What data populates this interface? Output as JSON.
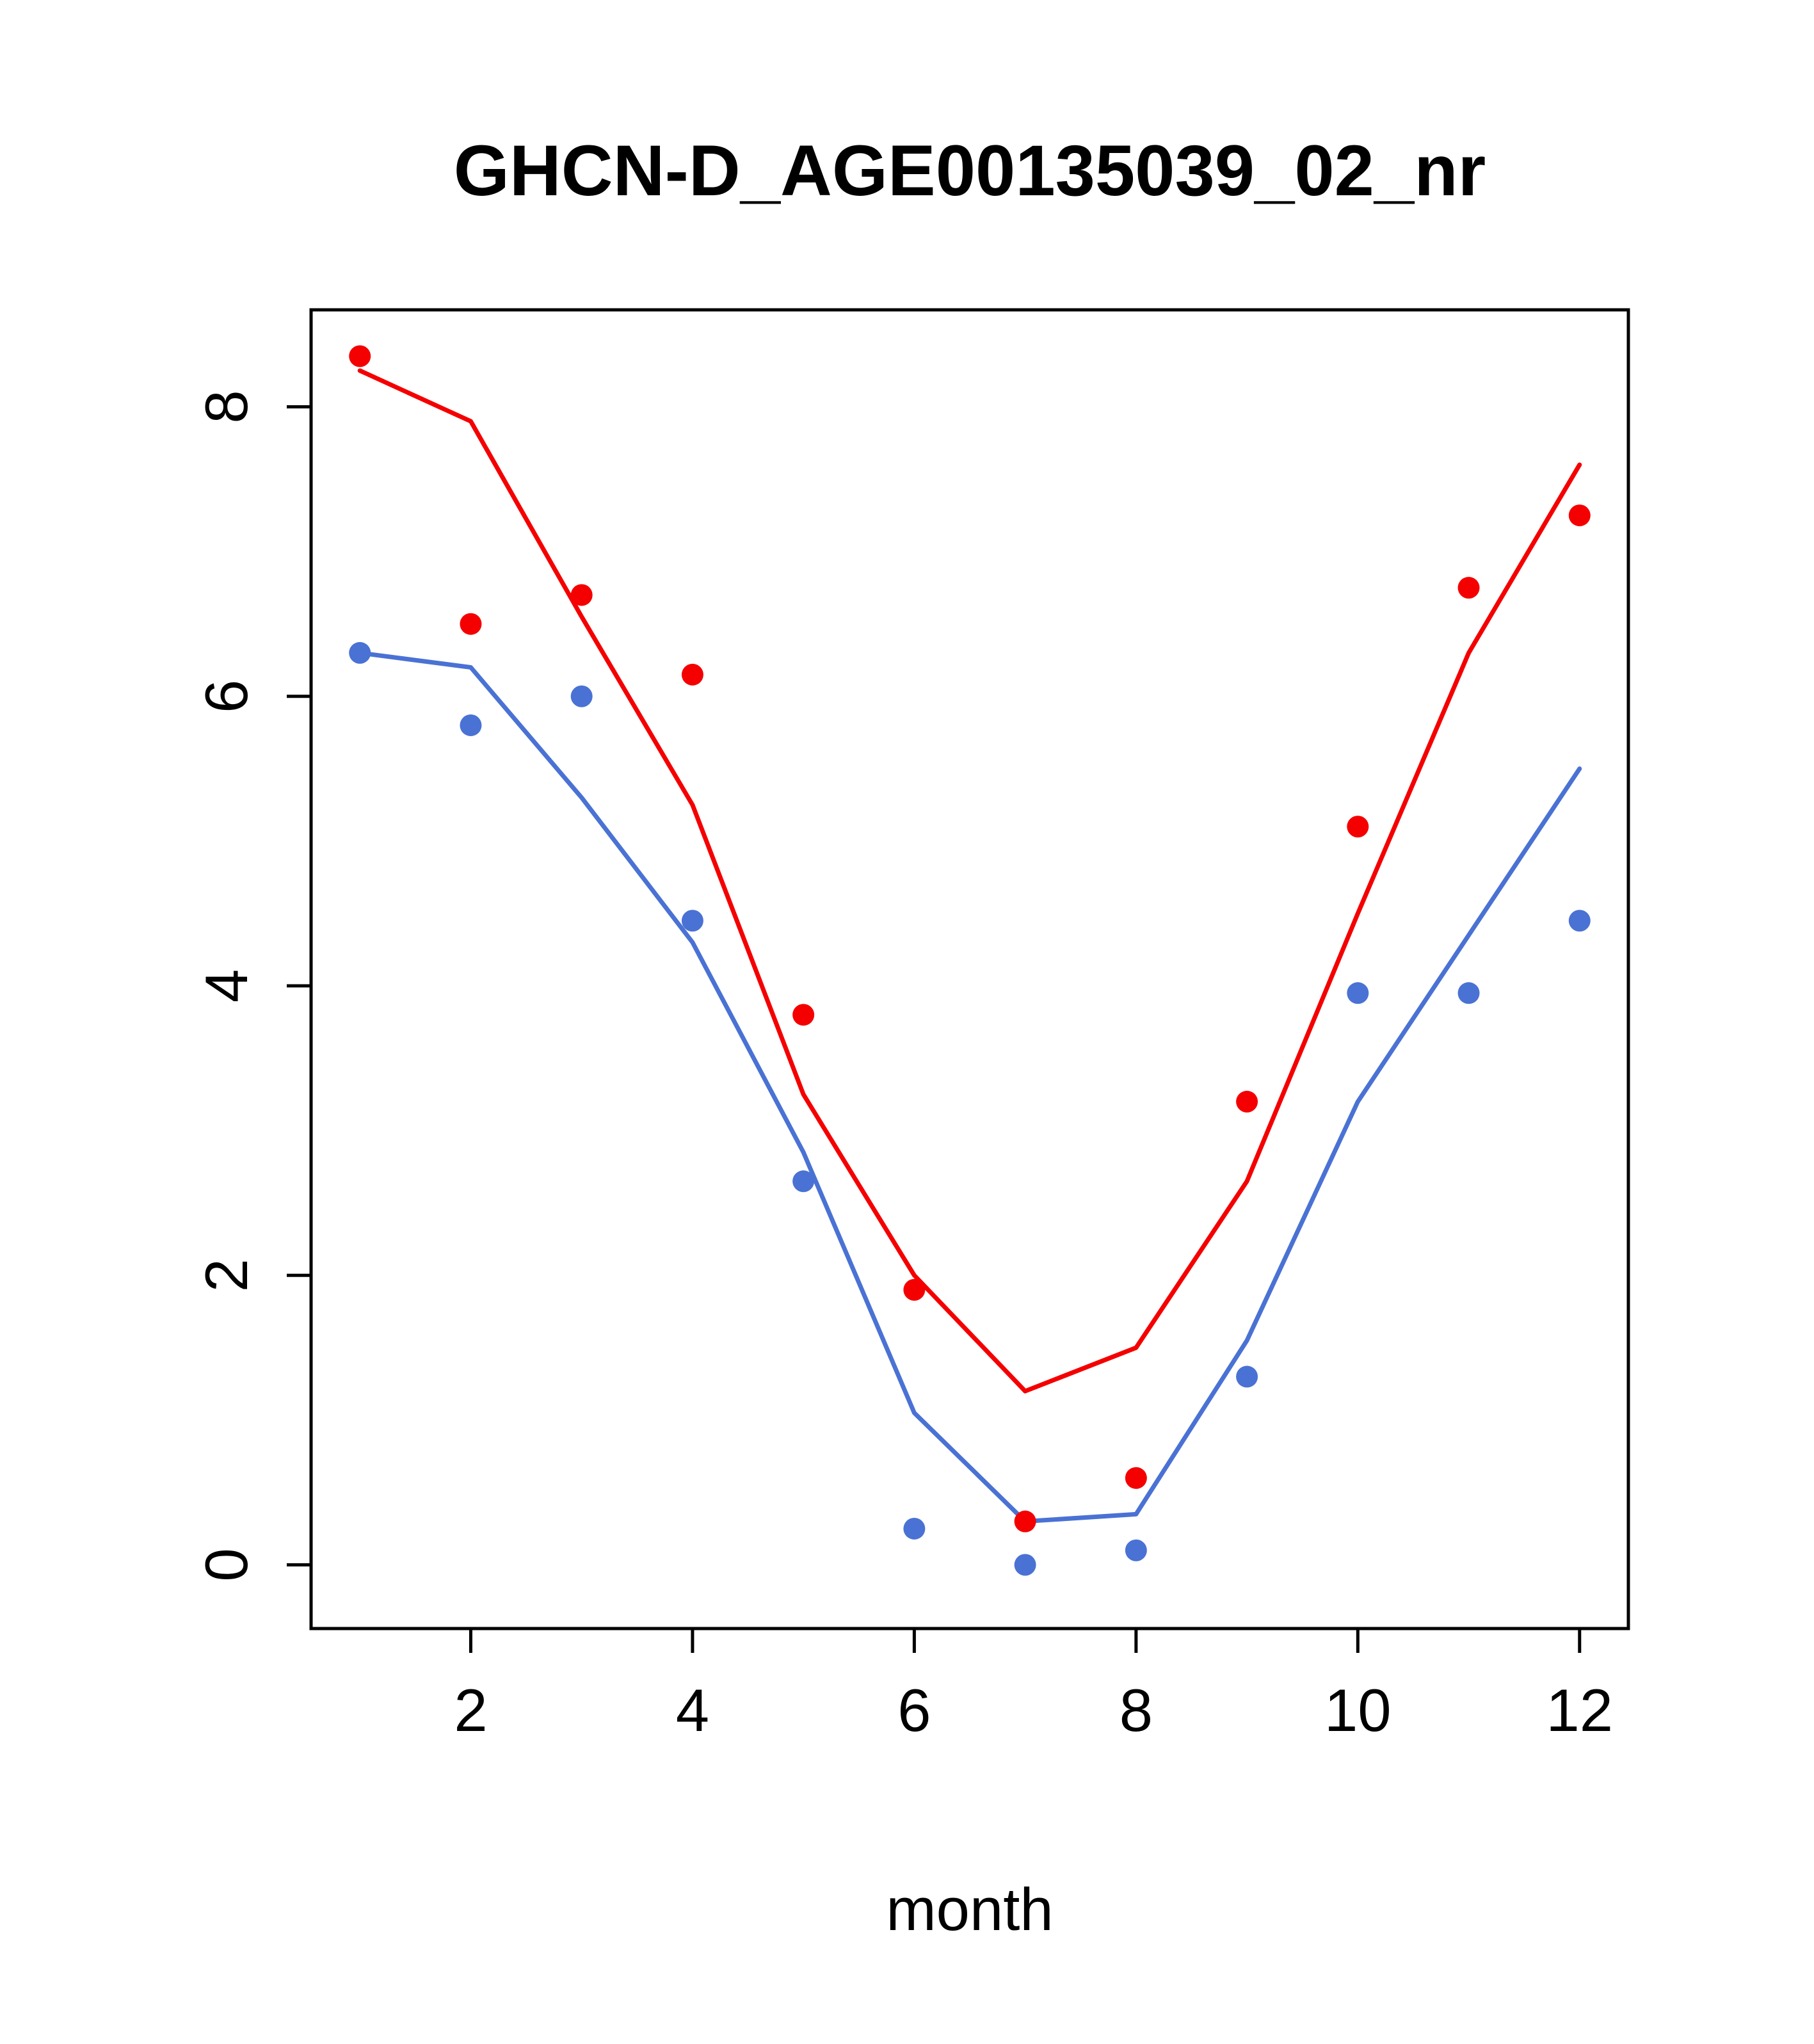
{
  "chart_data": {
    "type": "scatter",
    "title": "GHCN-D_AGE00135039_02_nr",
    "xlabel": "month",
    "ylabel": "",
    "xlim": [
      0.56,
      12.44
    ],
    "ylim": [
      -0.44,
      8.67
    ],
    "xticks": [
      2,
      4,
      6,
      8,
      10,
      12
    ],
    "yticks": [
      0,
      2,
      4,
      6,
      8
    ],
    "x": [
      1,
      2,
      3,
      4,
      5,
      6,
      7,
      8,
      9,
      10,
      11,
      12
    ],
    "colors": {
      "red": "#f40000",
      "blue": "#4a72d4",
      "axis": "#000000"
    },
    "series": [
      {
        "name": "red-line",
        "kind": "line",
        "color": "#f40000",
        "values": [
          8.25,
          7.9,
          6.55,
          5.25,
          3.25,
          2.0,
          1.2,
          1.5,
          2.65,
          4.5,
          6.3,
          7.6
        ]
      },
      {
        "name": "blue-line",
        "kind": "line",
        "color": "#4a72d4",
        "values": [
          6.3,
          6.2,
          5.3,
          4.3,
          2.85,
          1.05,
          0.3,
          0.35,
          1.55,
          3.2,
          4.35,
          5.5
        ]
      },
      {
        "name": "red-points",
        "kind": "points",
        "color": "#f40000",
        "values": [
          8.35,
          6.5,
          6.7,
          6.15,
          3.8,
          1.9,
          0.3,
          0.6,
          3.2,
          5.1,
          6.75,
          7.25
        ]
      },
      {
        "name": "blue-points",
        "kind": "points",
        "color": "#4a72d4",
        "values": [
          6.3,
          5.8,
          6.0,
          4.45,
          2.65,
          0.25,
          0.0,
          0.1,
          1.3,
          3.95,
          3.95,
          4.45
        ]
      }
    ],
    "grid": false,
    "legend": "none"
  }
}
